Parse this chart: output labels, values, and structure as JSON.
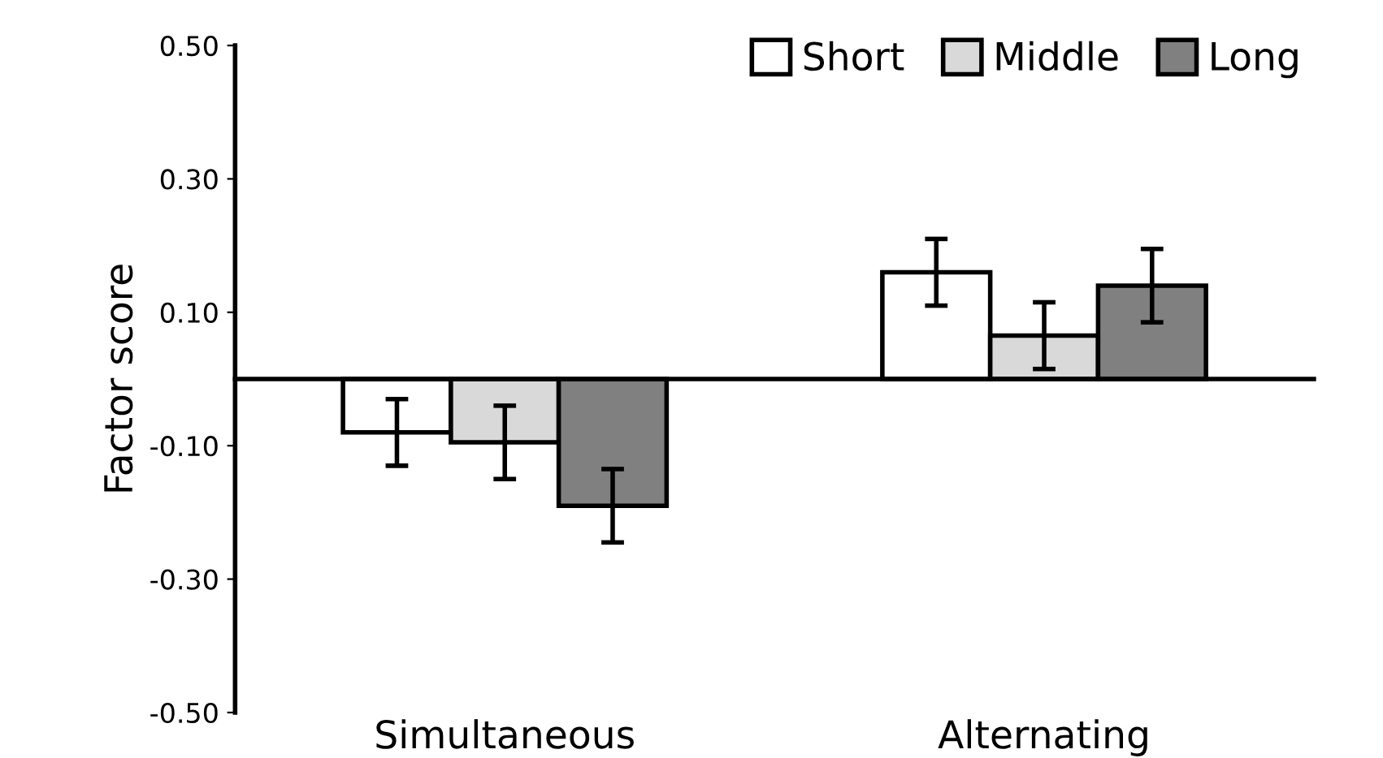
{
  "chart_data": {
    "type": "bar",
    "ylabel": "Factor score",
    "categories": [
      "Simultaneous",
      "Alternating"
    ],
    "series": [
      {
        "name": "Short",
        "color": "#ffffff",
        "values": [
          -0.08,
          0.16
        ],
        "errors": [
          0.05,
          0.05
        ]
      },
      {
        "name": "Middle",
        "color": "#d9d9d9",
        "values": [
          -0.095,
          0.065
        ],
        "errors": [
          0.055,
          0.05
        ]
      },
      {
        "name": "Long",
        "color": "#808080",
        "values": [
          -0.19,
          0.14
        ],
        "errors": [
          0.055,
          0.055
        ]
      }
    ],
    "ylim": [
      -0.5,
      0.5
    ],
    "yticks": [
      {
        "value": 0.5,
        "label": "0.50"
      },
      {
        "value": 0.3,
        "label": "0.30"
      },
      {
        "value": 0.1,
        "label": "0.10"
      },
      {
        "value": -0.1,
        "label": "-0.10"
      },
      {
        "value": -0.3,
        "label": "-0.30"
      },
      {
        "value": -0.5,
        "label": "-0.50"
      }
    ],
    "grid": false,
    "legend": "top right"
  }
}
